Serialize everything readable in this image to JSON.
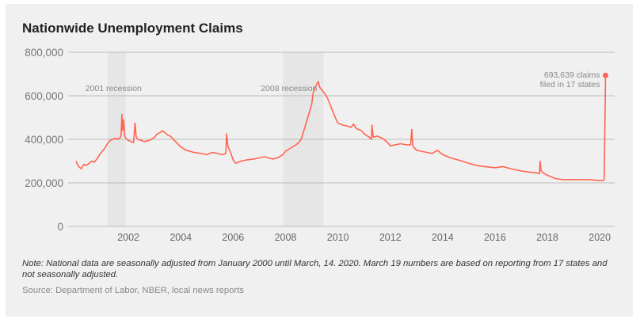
{
  "chart_data": {
    "type": "line",
    "title": "Nationwide Unemployment Claims",
    "xlabel": "",
    "ylabel": "",
    "xlim": [
      2000,
      2020.3
    ],
    "ylim": [
      0,
      800000
    ],
    "grid": "horizontal",
    "y_ticks": [
      0,
      200000,
      400000,
      600000,
      800000
    ],
    "y_tick_labels": [
      "0",
      "200,000",
      "400,000",
      "600,000",
      "800,000"
    ],
    "x_ticks": [
      2002,
      2004,
      2006,
      2008,
      2010,
      2012,
      2014,
      2016,
      2018,
      2020
    ],
    "x_tick_labels": [
      "2002",
      "2004",
      "2006",
      "2008",
      "2010",
      "2012",
      "2014",
      "2016",
      "2018",
      "2020"
    ],
    "line_color": "#ff6550",
    "recessions": [
      {
        "label": "2001 recession",
        "start": 2001.2,
        "end": 2001.9
      },
      {
        "label": "2008 recession",
        "start": 2007.9,
        "end": 2009.45
      }
    ],
    "annotation": {
      "line1": "693,639 claims",
      "line2": "filed in 17 states",
      "x": 2020.22,
      "y": 693639
    },
    "series": [
      {
        "x": [
          2000.0,
          2000.05,
          2000.1,
          2000.2,
          2000.3,
          2000.4,
          2000.5,
          2000.6,
          2000.7,
          2000.8,
          2000.9,
          2001.0,
          2001.1,
          2001.2,
          2001.3,
          2001.4,
          2001.5,
          2001.6,
          2001.7,
          2001.72,
          2001.75,
          2001.78,
          2001.82,
          2001.85,
          2001.9,
          2002.0,
          2002.1,
          2002.2,
          2002.25,
          2002.3,
          2002.35,
          2002.5,
          2002.6,
          2002.8,
          2003.0,
          2003.1,
          2003.2,
          2003.3,
          2003.4,
          2003.5,
          2003.6,
          2003.8,
          2004.0,
          2004.2,
          2004.5,
          2004.8,
          2005.0,
          2005.2,
          2005.4,
          2005.6,
          2005.72,
          2005.75,
          2005.8,
          2005.9,
          2006.0,
          2006.1,
          2006.3,
          2006.5,
          2006.8,
          2007.0,
          2007.2,
          2007.5,
          2007.7,
          2007.9,
          2008.0,
          2008.2,
          2008.4,
          2008.5,
          2008.6,
          2008.7,
          2008.8,
          2008.9,
          2009.0,
          2009.05,
          2009.1,
          2009.2,
          2009.25,
          2009.3,
          2009.4,
          2009.5,
          2009.6,
          2009.7,
          2009.8,
          2009.9,
          2010.0,
          2010.2,
          2010.4,
          2010.5,
          2010.6,
          2010.7,
          2010.9,
          2011.0,
          2011.2,
          2011.28,
          2011.3,
          2011.35,
          2011.5,
          2011.7,
          2011.9,
          2012.0,
          2012.2,
          2012.4,
          2012.6,
          2012.78,
          2012.82,
          2012.86,
          2013.0,
          2013.2,
          2013.4,
          2013.6,
          2013.8,
          2014.0,
          2014.3,
          2014.6,
          2015.0,
          2015.3,
          2015.6,
          2016.0,
          2016.3,
          2016.6,
          2017.0,
          2017.3,
          2017.6,
          2017.7,
          2017.72,
          2017.76,
          2017.85,
          2018.0,
          2018.3,
          2018.6,
          2019.0,
          2019.3,
          2019.6,
          2019.9,
          2020.1,
          2020.17,
          2020.22
        ],
        "y": [
          300000,
          285000,
          275000,
          265000,
          285000,
          280000,
          290000,
          300000,
          295000,
          310000,
          330000,
          345000,
          360000,
          380000,
          395000,
          400000,
          405000,
          400000,
          410000,
          420000,
          515000,
          440000,
          490000,
          420000,
          405000,
          395000,
          390000,
          385000,
          475000,
          410000,
          400000,
          395000,
          390000,
          395000,
          410000,
          425000,
          430000,
          440000,
          430000,
          420000,
          415000,
          390000,
          365000,
          350000,
          340000,
          335000,
          330000,
          340000,
          335000,
          330000,
          335000,
          425000,
          370000,
          340000,
          305000,
          290000,
          300000,
          305000,
          310000,
          315000,
          320000,
          310000,
          315000,
          330000,
          345000,
          360000,
          375000,
          385000,
          400000,
          440000,
          480000,
          520000,
          560000,
          610000,
          630000,
          655000,
          665000,
          640000,
          625000,
          610000,
          590000,
          560000,
          530000,
          500000,
          475000,
          465000,
          460000,
          455000,
          470000,
          450000,
          440000,
          425000,
          410000,
          400000,
          465000,
          410000,
          415000,
          405000,
          385000,
          370000,
          375000,
          380000,
          375000,
          375000,
          445000,
          370000,
          350000,
          345000,
          340000,
          335000,
          350000,
          330000,
          315000,
          305000,
          290000,
          280000,
          275000,
          270000,
          275000,
          265000,
          255000,
          250000,
          245000,
          242000,
          300000,
          255000,
          245000,
          235000,
          220000,
          215000,
          215000,
          215000,
          215000,
          212000,
          210000,
          215000,
          693639
        ]
      }
    ]
  },
  "footer": {
    "note": "Note: National data are seasonally adjusted from January 2000 until March, 14. 2020. March 19 numbers are based on reporting from 17 states and not seasonally adjusted.",
    "source": "Source: Department of Labor, NBER, local news reports"
  }
}
